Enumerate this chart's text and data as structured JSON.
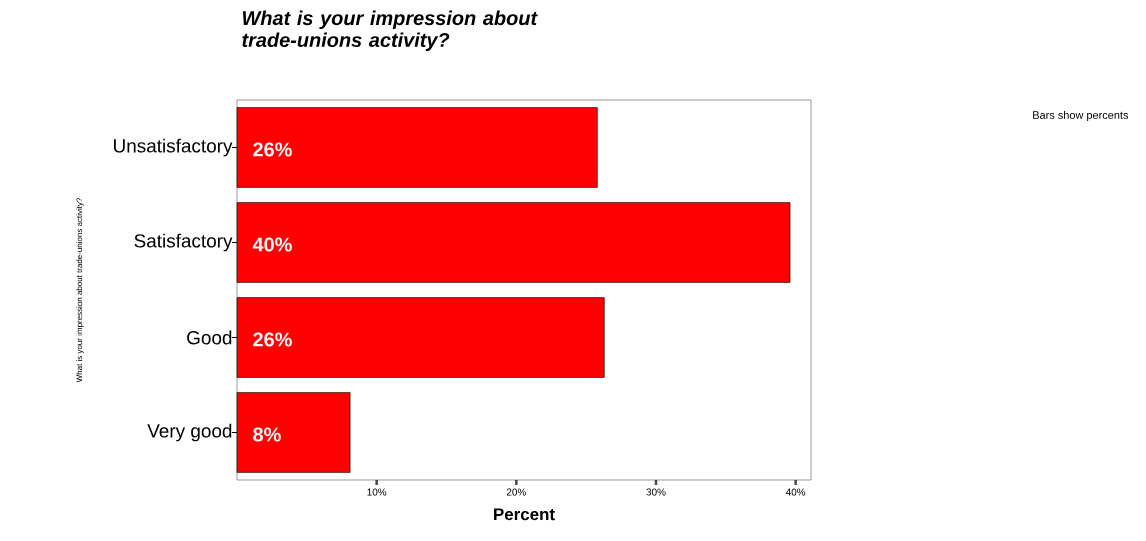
{
  "chart_data": {
    "type": "bar",
    "orientation": "horizontal",
    "title": "What is your impression about trade-unions activity?",
    "categories": [
      "Unsatisfactory",
      "Satisfactory",
      "Good",
      "Very good"
    ],
    "values": [
      25.8,
      39.6,
      26.3,
      8.1
    ],
    "value_labels": [
      "26%",
      "40%",
      "26%",
      "8%"
    ],
    "color": "#ff0000",
    "xlim": [
      0,
      41.1
    ],
    "xticks": [
      {
        "value": 10,
        "label": "10%"
      },
      {
        "value": 20,
        "label": "20%"
      },
      {
        "value": 30,
        "label": "30%"
      },
      {
        "value": 40,
        "label": "40%"
      }
    ],
    "xlabel": "Percent",
    "ylabel": "What is your impression about trade-unions activity?",
    "annotations": [
      "Bars show percents"
    ]
  }
}
